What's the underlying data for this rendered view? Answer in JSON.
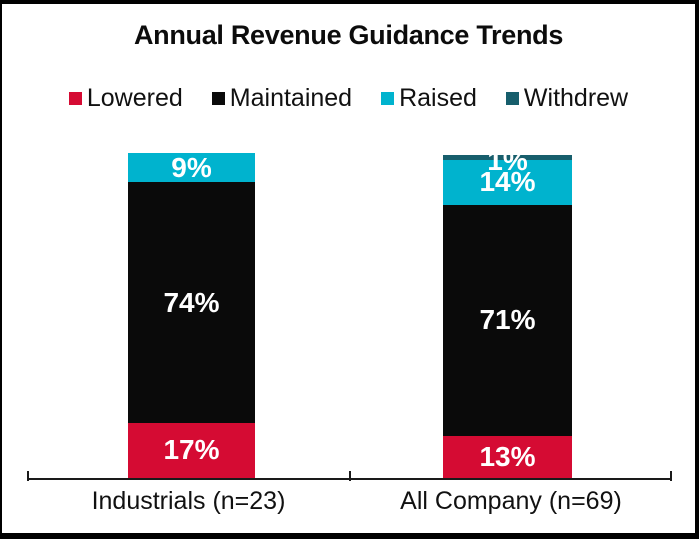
{
  "chart_data": {
    "type": "bar",
    "stacked": true,
    "title": "Annual Revenue Guidance Trends",
    "categories": [
      "Industrials (n=23)",
      "All Company (n=69)"
    ],
    "series": [
      {
        "name": "Lowered",
        "color": "#d50b33",
        "values": [
          17,
          13
        ]
      },
      {
        "name": "Maintained",
        "color": "#0a0a0a",
        "values": [
          74,
          71
        ]
      },
      {
        "name": "Raised",
        "color": "#00b3ce",
        "values": [
          9,
          14
        ]
      },
      {
        "name": "Withdrew",
        "color": "#175e6c",
        "values": [
          0,
          1
        ]
      }
    ],
    "value_format": "percent",
    "data_labels": [
      "17%",
      "74%",
      "9%",
      "13%",
      "71%",
      "14%",
      "1%"
    ],
    "label_color": "#ffffff",
    "legend_position": "top",
    "ylim": [
      0,
      100
    ],
    "grid": false,
    "axis_color": "#1a1a1a"
  }
}
